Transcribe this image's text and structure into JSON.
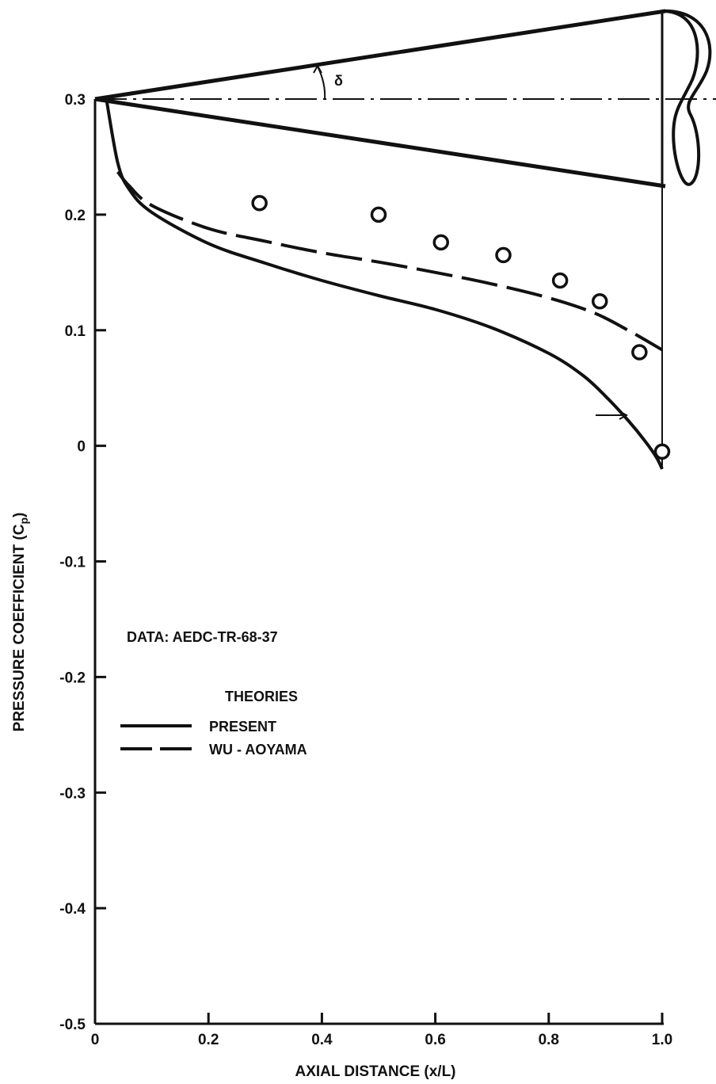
{
  "chart_data": {
    "type": "line",
    "xlabel": "AXIAL DISTANCE (x/L)",
    "ylabel": "PRESSURE COEFFICIENT (C",
    "ylabel_sub": "p",
    "ylabel_close": ")",
    "xlim": [
      0,
      1.0
    ],
    "ylim": [
      -0.5,
      0.3
    ],
    "x_ticks": [
      0,
      0.2,
      0.4,
      0.6,
      0.8,
      1.0
    ],
    "x_tick_labels": [
      "0",
      "0.2",
      "0.4",
      "0.6",
      "0.8",
      "1.0"
    ],
    "y_ticks": [
      0.3,
      0.2,
      0.1,
      0,
      -0.1,
      -0.2,
      -0.3,
      -0.4,
      -0.5
    ],
    "y_tick_labels": [
      "0.3",
      "0.2",
      "0.1",
      "0",
      "-0.1",
      "-0.2",
      "-0.3",
      "-0.4",
      "-0.5"
    ],
    "grid": false,
    "annotation_data": "DATA:  AEDC-TR-68-37",
    "legend_title": "THEORIES",
    "legend_placement": "lower-left",
    "angle_label": "δ",
    "series": [
      {
        "name": "PRESENT",
        "style": "solid",
        "x": [
          0.02,
          0.04,
          0.06,
          0.1,
          0.2,
          0.3,
          0.4,
          0.5,
          0.6,
          0.7,
          0.8,
          0.86,
          0.9,
          0.94,
          0.97,
          0.99,
          1.0
        ],
        "y": [
          0.3,
          0.245,
          0.222,
          0.202,
          0.175,
          0.158,
          0.143,
          0.13,
          0.118,
          0.102,
          0.08,
          0.061,
          0.043,
          0.022,
          0.004,
          -0.01,
          -0.02
        ]
      },
      {
        "name": "WU - AOYAMA",
        "style": "dashed",
        "x": [
          0.04,
          0.06,
          0.1,
          0.2,
          0.3,
          0.4,
          0.5,
          0.6,
          0.7,
          0.8,
          0.88,
          0.94,
          1.0
        ],
        "y": [
          0.237,
          0.225,
          0.208,
          0.188,
          0.177,
          0.167,
          0.159,
          0.15,
          0.14,
          0.128,
          0.115,
          0.1,
          0.083
        ]
      },
      {
        "type": "scatter",
        "marker": "circle",
        "x": [
          0.29,
          0.5,
          0.61,
          0.72,
          0.82,
          0.89,
          0.96,
          1.0
        ],
        "y": [
          0.21,
          0.2,
          0.176,
          0.165,
          0.143,
          0.125,
          0.081,
          -0.005
        ]
      }
    ]
  }
}
